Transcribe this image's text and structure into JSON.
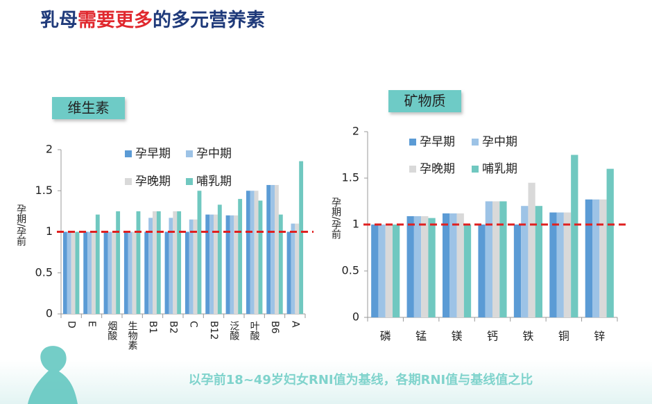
{
  "header": {
    "title_parts": [
      "乳母",
      "需要更多",
      "的多元营养素"
    ]
  },
  "chart_data": [
    {
      "type": "bar",
      "title": "维生素",
      "ylabel": "孕期/孕前",
      "categories": [
        "D",
        "E",
        "烟酸",
        "生物素",
        "B1",
        "B2",
        "C",
        "B12",
        "泛酸",
        "叶酸",
        "B6",
        "A"
      ],
      "series": [
        {
          "name": "孕早期",
          "color": "#5b9bd5",
          "values": [
            1,
            1,
            1,
            1,
            1,
            1,
            1,
            1.21,
            1.2,
            1.5,
            1.57,
            1
          ]
        },
        {
          "name": "孕中期",
          "color": "#9dc3e6",
          "values": [
            1,
            1,
            1,
            1,
            1.17,
            1.17,
            1.15,
            1.21,
            1.2,
            1.5,
            1.57,
            1.1
          ]
        },
        {
          "name": "孕晚期",
          "color": "#d9d9d9",
          "values": [
            1,
            1,
            1,
            1,
            1.25,
            1.25,
            1.15,
            1.21,
            1.2,
            1.5,
            1.57,
            1.1
          ]
        },
        {
          "name": "哺乳期",
          "color": "#70c8c0",
          "values": [
            1,
            1.21,
            1.25,
            1.25,
            1.25,
            1.25,
            1.5,
            1.33,
            1.4,
            1.38,
            1.21,
            1.86
          ]
        }
      ],
      "ylim": [
        0,
        2
      ],
      "yticks": [
        0,
        0.5,
        1,
        1.5,
        2
      ],
      "reference_line": {
        "value": 1,
        "color": "#e02020"
      }
    },
    {
      "type": "bar",
      "title": "矿物质",
      "ylabel": "孕期/孕前",
      "categories": [
        "磷",
        "锰",
        "镁",
        "钙",
        "铁",
        "铜",
        "锌"
      ],
      "series": [
        {
          "name": "孕早期",
          "color": "#5b9bd5",
          "values": [
            1,
            1.09,
            1.12,
            1,
            1,
            1.13,
            1.27
          ]
        },
        {
          "name": "孕中期",
          "color": "#9dc3e6",
          "values": [
            1,
            1.09,
            1.12,
            1.25,
            1.2,
            1.13,
            1.27
          ]
        },
        {
          "name": "孕晚期",
          "color": "#d9d9d9",
          "values": [
            1,
            1.09,
            1.12,
            1.25,
            1.45,
            1.13,
            1.27
          ]
        },
        {
          "name": "哺乳期",
          "color": "#70c8c0",
          "values": [
            1,
            1.07,
            1,
            1.25,
            1.2,
            1.75,
            1.6
          ]
        }
      ],
      "ylim": [
        0,
        2
      ],
      "yticks": [
        0,
        0.5,
        1,
        1.5,
        2
      ],
      "reference_line": {
        "value": 1,
        "color": "#e02020"
      }
    }
  ],
  "footnote": "以孕前18~49岁妇女RNI值为基线，各期RNI值与基线值之比"
}
